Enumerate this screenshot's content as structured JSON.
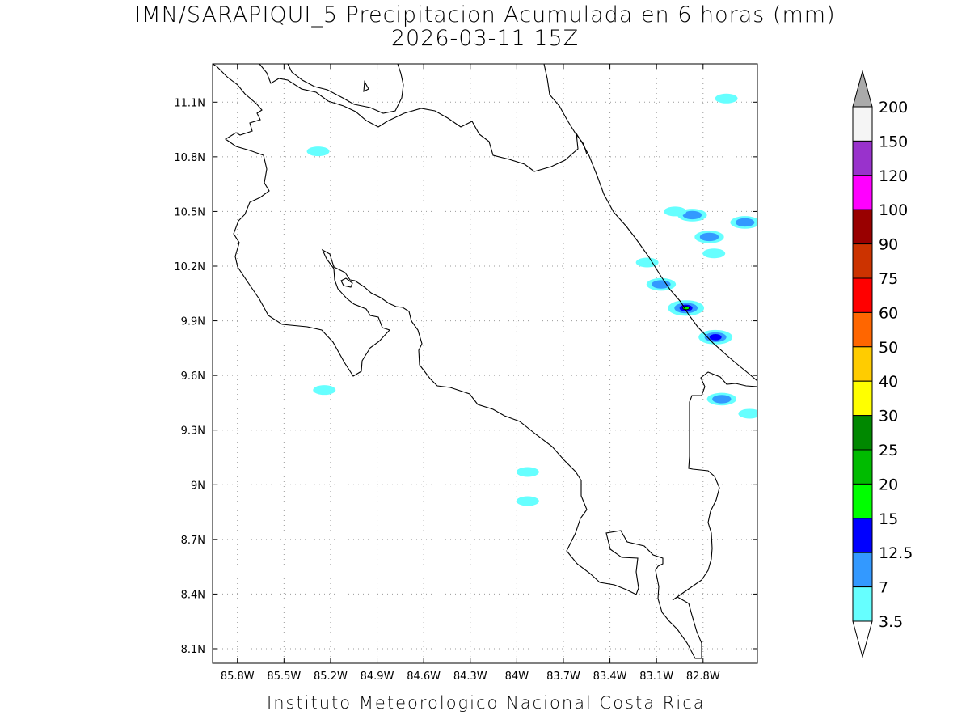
{
  "header": {
    "title_line1": "IMN/SARAPIQUI_5 Precipitacion Acumulada en 6 horas (mm)",
    "title_line2": "2026-03-11 15Z"
  },
  "footer": {
    "credit": "Instituto Meteorologico Nacional Costa Rica"
  },
  "map": {
    "lon_range": [
      -85.96,
      -82.45
    ],
    "lat_range": [
      8.02,
      11.31
    ],
    "lon_ticks": [
      {
        "value": -85.8,
        "label": "85.8W"
      },
      {
        "value": -85.5,
        "label": "85.5W"
      },
      {
        "value": -85.2,
        "label": "85.2W"
      },
      {
        "value": -84.9,
        "label": "84.9W"
      },
      {
        "value": -84.6,
        "label": "84.6W"
      },
      {
        "value": -84.3,
        "label": "84.3W"
      },
      {
        "value": -84.0,
        "label": "84W"
      },
      {
        "value": -83.7,
        "label": "83.7W"
      },
      {
        "value": -83.4,
        "label": "83.4W"
      },
      {
        "value": -83.1,
        "label": "83.1W"
      },
      {
        "value": -82.8,
        "label": "82.8W"
      }
    ],
    "lat_ticks": [
      {
        "value": 11.1,
        "label": "11.1N"
      },
      {
        "value": 10.8,
        "label": "10.8N"
      },
      {
        "value": 10.5,
        "label": "10.5N"
      },
      {
        "value": 10.2,
        "label": "10.2N"
      },
      {
        "value": 9.9,
        "label": "9.9N"
      },
      {
        "value": 9.6,
        "label": "9.6N"
      },
      {
        "value": 9.3,
        "label": "9.3N"
      },
      {
        "value": 9.0,
        "label": "9N"
      },
      {
        "value": 8.7,
        "label": "8.7N"
      },
      {
        "value": 8.4,
        "label": "8.4N"
      },
      {
        "value": 8.1,
        "label": "8.1N"
      }
    ],
    "grid": true
  },
  "colorbar": {
    "levels": [
      {
        "label": "200",
        "color": "#f5f5f5"
      },
      {
        "label": "150",
        "color": "#9932cc"
      },
      {
        "label": "120",
        "color": "#ff00ff"
      },
      {
        "label": "100",
        "color": "#990000"
      },
      {
        "label": "90",
        "color": "#cc3300"
      },
      {
        "label": "75",
        "color": "#ff0000"
      },
      {
        "label": "60",
        "color": "#ff6600"
      },
      {
        "label": "50",
        "color": "#ffcc00"
      },
      {
        "label": "40",
        "color": "#ffff00"
      },
      {
        "label": "30",
        "color": "#008800"
      },
      {
        "label": "25",
        "color": "#00bb00"
      },
      {
        "label": "20",
        "color": "#00ff00"
      },
      {
        "label": "15",
        "color": "#0000ff"
      },
      {
        "label": "12.5",
        "color": "#3399ff"
      },
      {
        "label": "7",
        "color": "#66ffff"
      },
      {
        "label": "3.5",
        "color": "#ffffff"
      }
    ],
    "top_arrow_color": "#aaaaaa",
    "bottom_arrow_color": "#ffffff"
  },
  "precip_cells": [
    {
      "lon": -82.65,
      "lat": 11.12,
      "level": "3.5"
    },
    {
      "lon": -82.87,
      "lat": 10.48,
      "level": "7"
    },
    {
      "lon": -82.98,
      "lat": 10.5,
      "level": "3.5"
    },
    {
      "lon": -82.76,
      "lat": 10.36,
      "level": "7"
    },
    {
      "lon": -82.73,
      "lat": 10.27,
      "level": "3.5"
    },
    {
      "lon": -82.53,
      "lat": 10.44,
      "level": "7"
    },
    {
      "lon": -83.16,
      "lat": 10.22,
      "level": "3.5"
    },
    {
      "lon": -83.07,
      "lat": 10.1,
      "level": "7"
    },
    {
      "lon": -82.91,
      "lat": 9.97,
      "level": "15"
    },
    {
      "lon": -82.72,
      "lat": 9.81,
      "level": "12.5"
    },
    {
      "lon": -82.68,
      "lat": 9.47,
      "level": "7"
    },
    {
      "lon": -82.5,
      "lat": 9.39,
      "level": "3.5"
    },
    {
      "lon": -85.28,
      "lat": 10.83,
      "level": "3.5"
    },
    {
      "lon": -85.24,
      "lat": 9.52,
      "level": "3.5"
    },
    {
      "lon": -83.93,
      "lat": 9.07,
      "level": "3.5"
    },
    {
      "lon": -83.93,
      "lat": 8.91,
      "level": "3.5"
    }
  ]
}
